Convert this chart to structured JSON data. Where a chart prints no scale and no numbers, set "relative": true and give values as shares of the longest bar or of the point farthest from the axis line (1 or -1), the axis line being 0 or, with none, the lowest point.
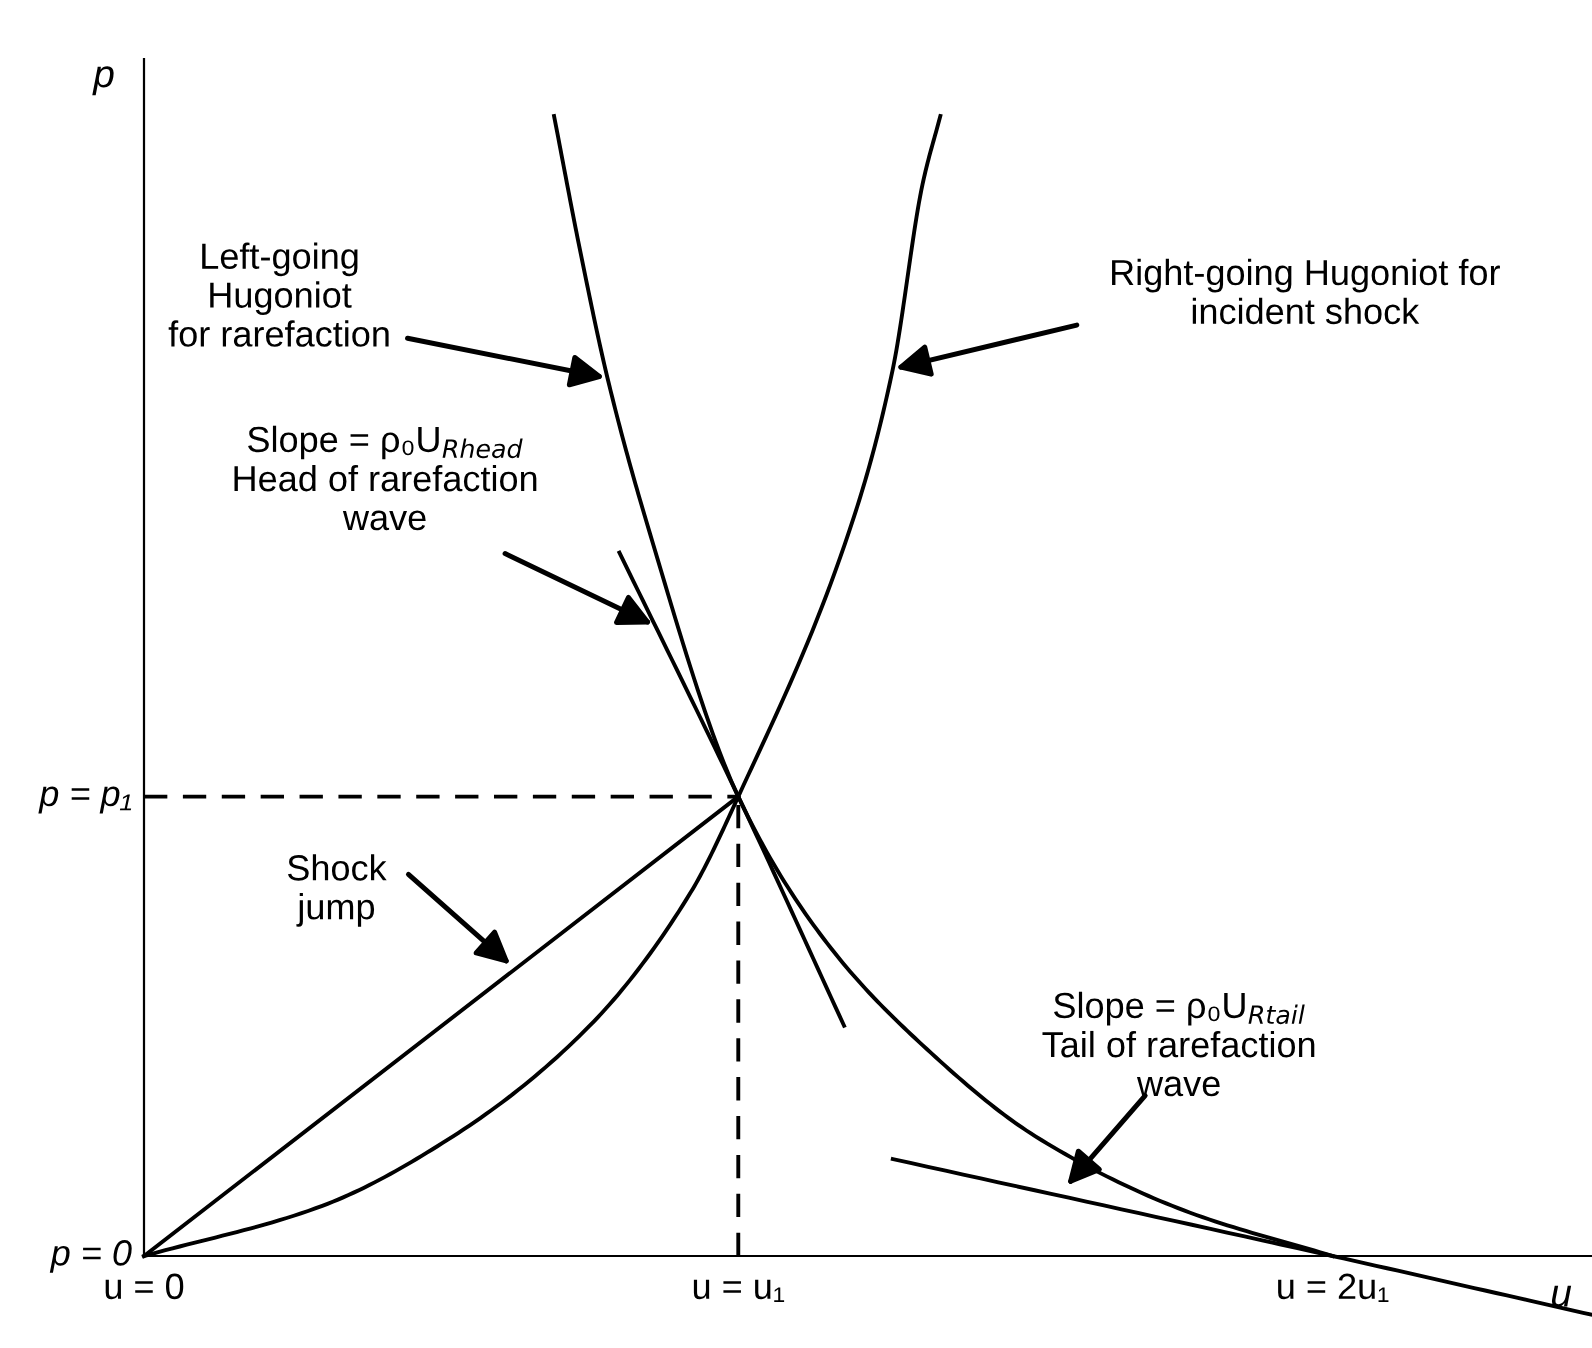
{
  "chart_data": {
    "type": "line",
    "xlabel": "u",
    "ylabel": "p",
    "relative": true,
    "xlim": [
      0,
      2.45
    ],
    "xticks": [
      {
        "value": 0,
        "label": "u = 0"
      },
      {
        "value": 1,
        "label": "u = u₁"
      },
      {
        "value": 2,
        "label": "u = 2u₁"
      }
    ],
    "grid": false,
    "marker": "none",
    "series": [
      {
        "color": "#000000",
        "x": [
          0,
          0.3,
          0.52,
          0.75,
          0.92,
          1,
          1.195,
          1.26,
          1.31,
          1.34
        ],
        "values": [
          0,
          0.044,
          0.105,
          0.202,
          0.319,
          0.403,
          0.649,
          0.778,
          0.94,
          1
        ]
      },
      {
        "color": "#000000",
        "x": [
          0.69,
          0.735,
          0.78,
          0.845,
          1,
          1.15,
          1.31,
          1.5,
          1.75,
          2
        ],
        "values": [
          1,
          0.879,
          0.77,
          0.645,
          0.403,
          0.274,
          0.185,
          0.105,
          0.04,
          0
        ]
      },
      {
        "color": "#000000",
        "x": [
          0,
          1
        ],
        "values": [
          0,
          0.403
        ]
      },
      {
        "color": "#000000",
        "x": [
          0.8,
          1,
          1.178
        ],
        "values": [
          0.617,
          0.403,
          0.202
        ]
      },
      {
        "color": "#000000",
        "x": [
          1.26,
          2,
          2.44
        ],
        "values": [
          0.085,
          0,
          -0.052
        ]
      },
      {
        "color": "#000000",
        "line_style": "dashed",
        "x": [
          0,
          1
        ],
        "values": [
          0.403,
          0.403
        ]
      },
      {
        "color": "#000000",
        "line_style": "dashed",
        "x": [
          1,
          1
        ],
        "values": [
          0,
          0.403
        ]
      }
    ],
    "annotations": [
      {
        "text": "Left-going\nHugoniot\nfor rarefaction",
        "x": 0.78,
        "y": 0.77
      },
      {
        "text": "Right-going Hugoniot for\nincident shock",
        "x": 1.26,
        "y": 0.778
      },
      {
        "text": "Slope = ρ₀U$_{Rhead}$\nHead of rarefaction\nwave",
        "x": 0.86,
        "y": 0.553
      },
      {
        "text": "Shock\njump",
        "x": 0.62,
        "y": 0.254
      },
      {
        "text": "Slope = ρ₀U$_{Rtail}$\nTail of rarefaction\nwave",
        "x": 1.55,
        "y": 0.06
      },
      {
        "text": "p = 0",
        "x": 0,
        "y": 0
      },
      {
        "text": "p = p₁",
        "x": 0,
        "y": 0.403
      }
    ]
  }
}
